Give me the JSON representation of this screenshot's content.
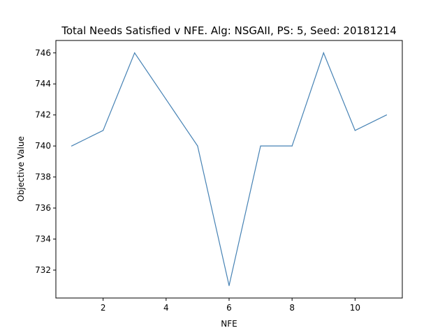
{
  "chart_data": {
    "type": "line",
    "title": "Total Needs Satisfied v NFE. Alg: NSGAII, PS: 5, Seed: 20181214",
    "xlabel": "NFE",
    "ylabel": "Objective Value",
    "xlim": [
      0.5,
      11.5
    ],
    "ylim": [
      730.2,
      746.8
    ],
    "xticks": [
      2,
      4,
      6,
      8,
      10
    ],
    "yticks": [
      732,
      734,
      736,
      738,
      740,
      742,
      744,
      746
    ],
    "grid": false,
    "legend": "none",
    "series": [
      {
        "color": "#4682b4",
        "x": [
          1,
          2,
          3,
          4,
          5,
          6,
          7,
          8,
          9,
          10,
          11
        ],
        "y": [
          740,
          741,
          746,
          743,
          740,
          731,
          740,
          740,
          746,
          741,
          742
        ]
      }
    ]
  }
}
